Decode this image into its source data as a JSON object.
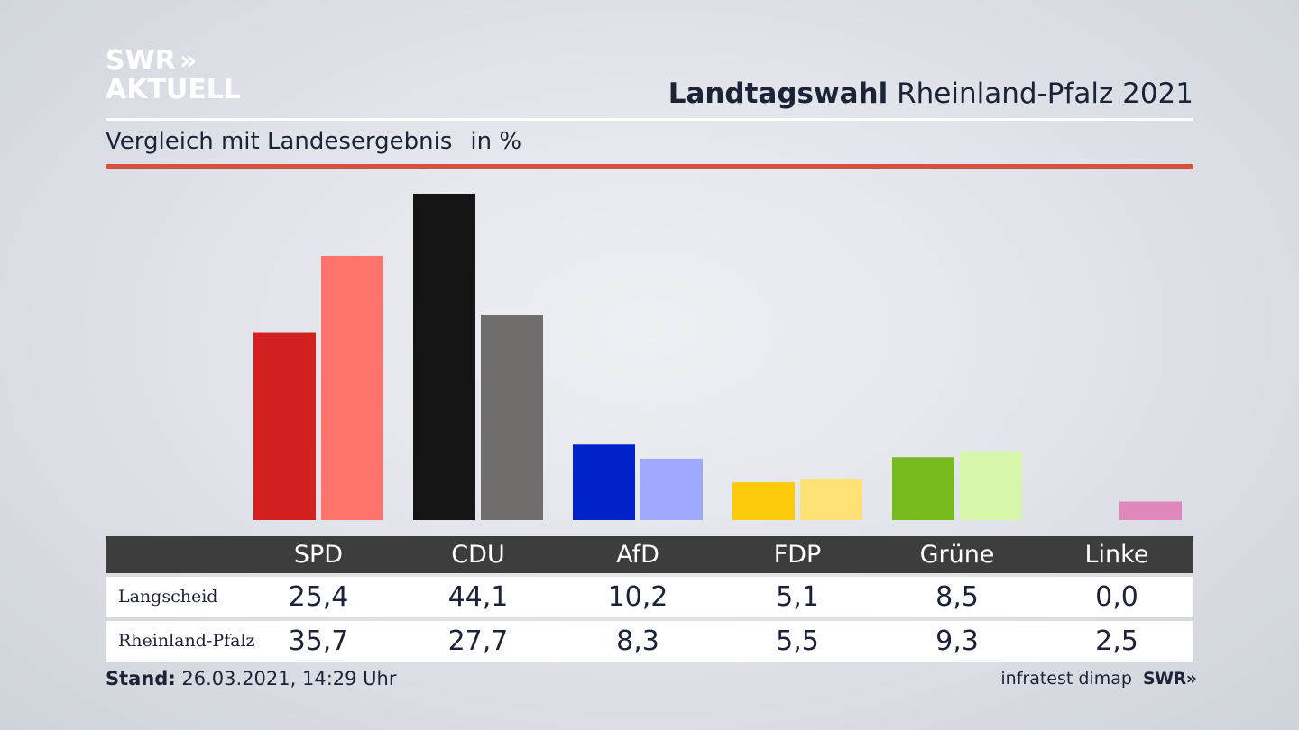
{
  "header": {
    "logo_line1": "SWR",
    "logo_chevrons": "»",
    "logo_line2": "AKTUELL",
    "title_bold": "Landtagswahl",
    "title_rest": " Rheinland-Pfalz 2021",
    "subtitle": "Vergleich mit Landesergebnis",
    "unit": "in %"
  },
  "chart_data": {
    "type": "bar",
    "categories": [
      "SPD",
      "CDU",
      "AfD",
      "FDP",
      "Grüne",
      "Linke"
    ],
    "series": [
      {
        "name": "Langscheid",
        "values": [
          25.4,
          44.1,
          10.2,
          5.1,
          8.5,
          0.0
        ],
        "colors": [
          "#d42021",
          "#141414",
          "#0122c8",
          "#fdcb0b",
          "#78ba1e",
          "#e088bb"
        ]
      },
      {
        "name": "Rheinland-Pfalz",
        "values": [
          35.7,
          27.7,
          8.3,
          5.5,
          9.3,
          2.5
        ],
        "colors": [
          "#ff736d",
          "#706e6c",
          "#9eaaff",
          "#ffe175",
          "#d6f6aa",
          "#e088bb"
        ]
      }
    ],
    "value_labels": [
      [
        "25,4",
        "44,1",
        "10,2",
        "5,1",
        "8,5",
        "0,0"
      ],
      [
        "35,7",
        "27,7",
        "8,3",
        "5,5",
        "9,3",
        "2,5"
      ]
    ],
    "ylim": [
      0,
      44.1
    ]
  },
  "footer": {
    "stand_label": "Stand:",
    "stand_value": " 26.03.2021, 14:29 Uhr",
    "source": "infratest dimap",
    "source_logo": "SWR",
    "source_chevrons": "»"
  }
}
